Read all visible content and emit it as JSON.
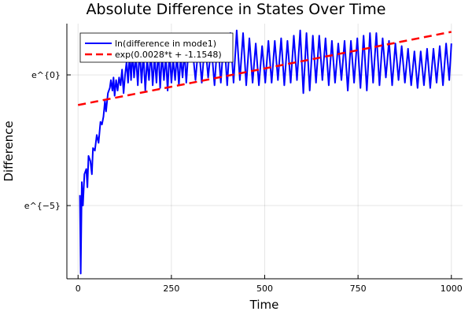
{
  "chart_data": {
    "type": "line",
    "title": "Absolute Difference in States Over Time",
    "xlabel": "Time",
    "ylabel": "Difference",
    "xlim": [
      -30,
      1030
    ],
    "ylim_ln": [
      -7.8,
      1.96
    ],
    "yscale": "log (natural)",
    "xticks": [
      0,
      250,
      500,
      750,
      1000
    ],
    "xtick_labels": [
      "0",
      "250",
      "500",
      "750",
      "1000"
    ],
    "yticks_ln": [
      0,
      -5
    ],
    "ytick_labels": [
      "e^{0}",
      "e^{−5}"
    ],
    "grid": true,
    "legend_position": "top-left",
    "series": [
      {
        "name": "ln(difference in mode1)",
        "color": "#0000ff",
        "style": "solid",
        "x": [
          5,
          7,
          10,
          13,
          17,
          22,
          25,
          28,
          33,
          37,
          40,
          45,
          50,
          55,
          60,
          64,
          68,
          72,
          75,
          80,
          85,
          88,
          92,
          95,
          98,
          102,
          106,
          110,
          114,
          118,
          122,
          126,
          130,
          134,
          138,
          142,
          146,
          150,
          155,
          160,
          165,
          170,
          175,
          180,
          185,
          190,
          195,
          200,
          205,
          210,
          215,
          220,
          225,
          230,
          235,
          240,
          245,
          250,
          255,
          260,
          265,
          270,
          275,
          280,
          285,
          290,
          295
        ],
        "ln_y": [
          -4.6,
          -7.6,
          -4.1,
          -5.0,
          -3.8,
          -3.6,
          -4.3,
          -3.1,
          -3.3,
          -3.8,
          -2.8,
          -2.9,
          -2.3,
          -2.6,
          -1.8,
          -1.9,
          -1.6,
          -1.0,
          -1.4,
          -0.7,
          -0.5,
          -0.2,
          -0.6,
          -0.1,
          -0.8,
          -0.2,
          -0.6,
          -0.1,
          -0.4,
          0.2,
          -0.7,
          0.0,
          0.5,
          -0.3,
          0.8,
          -0.2,
          0.9,
          -0.1,
          0.7,
          -0.4,
          1.0,
          -0.3,
          0.8,
          -0.6,
          0.6,
          -0.2,
          0.9,
          -0.4,
          0.7,
          -0.3,
          1.0,
          -0.5,
          0.8,
          -0.2,
          0.7,
          -0.6,
          0.9,
          -0.3,
          0.6,
          -0.2,
          0.8,
          -0.4,
          0.7,
          -0.1,
          0.9,
          -0.3,
          0.8
        ],
        "osc_start": 300,
        "osc_period": 17,
        "osc_peaks_ln": [
          1.1,
          1.2,
          1.3,
          1.1,
          1.4,
          1.5,
          1.6,
          1.7,
          1.6,
          1.4,
          1.2,
          1.1,
          1.3,
          1.3,
          1.4,
          1.3,
          1.5,
          1.7,
          1.6,
          1.5,
          1.5,
          1.4,
          1.3,
          1.2,
          1.3,
          1.3,
          1.4,
          1.5,
          1.6,
          1.6,
          1.4,
          1.3,
          1.2,
          1.1,
          1.0,
          0.9,
          0.9,
          1.0,
          1.0,
          1.1,
          1.2
        ],
        "osc_troughs_ln": [
          -0.2,
          -0.3,
          -0.1,
          -0.4,
          -0.3,
          -0.4,
          -0.3,
          -0.2,
          -0.4,
          -0.3,
          -0.4,
          -0.3,
          -0.3,
          -0.2,
          -0.4,
          -0.3,
          -0.2,
          -0.7,
          -0.6,
          -0.3,
          -0.2,
          -0.4,
          -0.3,
          -0.2,
          -0.6,
          -0.3,
          -0.5,
          -0.6,
          -0.3,
          -0.4,
          -0.1,
          -0.4,
          -0.2,
          -0.3,
          -0.4,
          -0.5,
          -0.4,
          -0.5,
          -0.3,
          -0.4,
          -0.2
        ]
      },
      {
        "name": "exp(0.0028*t + -1.1548)",
        "color": "#ff0000",
        "style": "dashed",
        "slope": 0.0028,
        "intercept": -1.1548,
        "x_range": [
          0,
          1000
        ]
      }
    ]
  }
}
